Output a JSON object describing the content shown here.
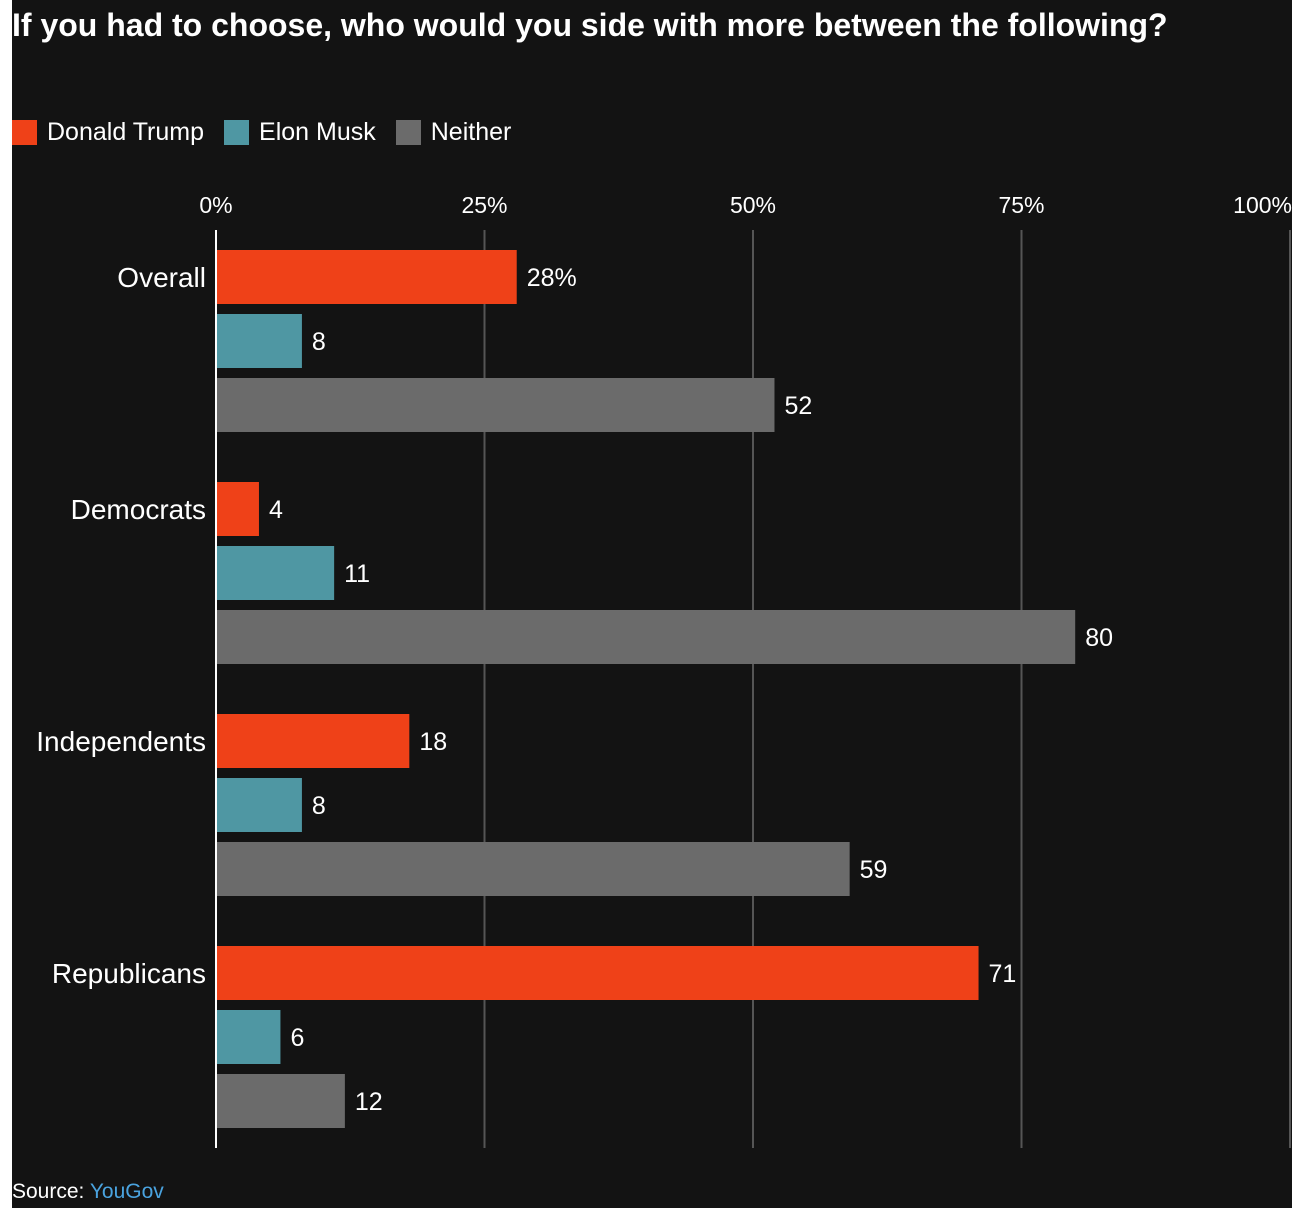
{
  "header": {
    "title": "If you had to choose, who would you side with more between the following?"
  },
  "footer": {
    "source_label": "Source:",
    "source_name": "YouGov"
  },
  "colors": {
    "background": "#131313",
    "trump": "#ef4118",
    "musk": "#4f97a3",
    "neither": "#6b6b6b",
    "gridline": "#555555",
    "axis": "#ffffff",
    "source_link": "#4aa3df"
  },
  "chart_data": {
    "type": "bar",
    "orientation": "horizontal",
    "title": "If you had to choose, who would you side with more between the following?",
    "categories": [
      "Overall",
      "Democrats",
      "Independents",
      "Republicans"
    ],
    "series": [
      {
        "name": "Donald Trump",
        "color": "#ef4118",
        "values": [
          28,
          4,
          18,
          71
        ]
      },
      {
        "name": "Elon Musk",
        "color": "#4f97a3",
        "values": [
          8,
          11,
          8,
          6
        ]
      },
      {
        "name": "Neither",
        "color": "#6b6b6b",
        "values": [
          52,
          80,
          59,
          12
        ]
      }
    ],
    "data_labels": [
      [
        "28%",
        "4",
        "18",
        "71"
      ],
      [
        "8",
        "11",
        "8",
        "6"
      ],
      [
        "52",
        "80",
        "59",
        "12"
      ]
    ],
    "xlim": [
      0,
      100
    ],
    "xticks": [
      0,
      25,
      50,
      75,
      100
    ],
    "xtick_labels": [
      "0%",
      "25%",
      "50%",
      "75%",
      "100%"
    ],
    "xlabel": "",
    "ylabel": "",
    "grid": true,
    "axis_position": "top",
    "legend_position": "top-left"
  }
}
